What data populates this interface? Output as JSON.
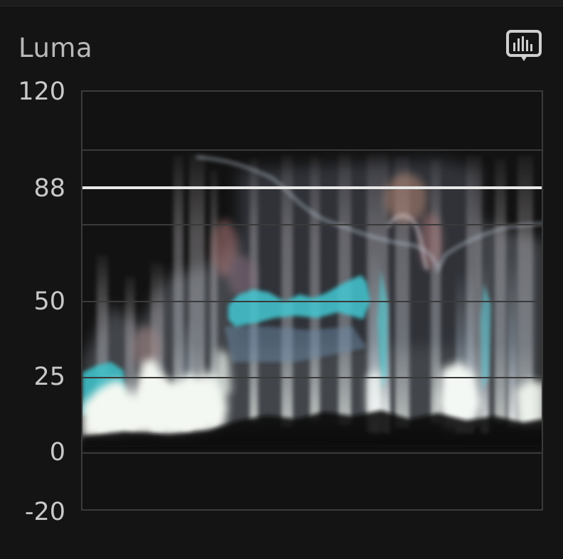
{
  "panel": {
    "title": "Luma",
    "menu_icon": "scope-options-icon"
  },
  "scale": {
    "ticks": [
      "120",
      "88",
      "50",
      "25",
      "0",
      "-20"
    ],
    "min": -20,
    "max": 120
  },
  "reference_line": {
    "value": 88,
    "color": "#e8e8e8"
  },
  "colors": {
    "background": "#141414",
    "accent_trace": "#4fd6dc",
    "trace_white": "#f4f8f4",
    "gridline": "#3c3c3c"
  }
}
